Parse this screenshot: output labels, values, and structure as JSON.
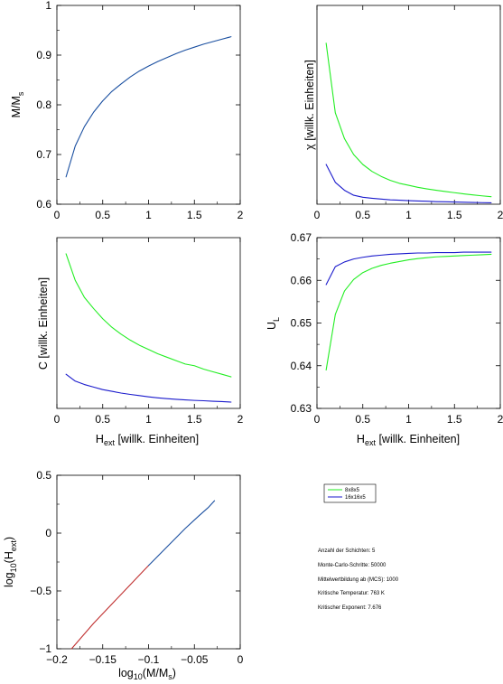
{
  "colors": {
    "green": "#22ee22",
    "blue": "#1a1acc",
    "darkblue": "#1a4fa0",
    "red": "#c03030"
  },
  "legend": {
    "entries": [
      {
        "label": "8x8x5",
        "color": "#22ee22"
      },
      {
        "label": "16x16x5",
        "color": "#1a1acc"
      }
    ]
  },
  "info": {
    "lines": [
      "Anzahl der Schichten: 5",
      "Monte-Carlo-Schritte: 50000",
      "Mittelwertbildung ab (MCS): 1000",
      "Kritische Temperatur: 763 K",
      "Kritischer Exponent: 7.676"
    ]
  },
  "chart_data": [
    {
      "id": "magnetization",
      "type": "line",
      "ylabel_main": "M/M",
      "ylabel_sub": "s",
      "xlim": [
        0,
        2
      ],
      "ylim": [
        0.6,
        1
      ],
      "xticks": [
        0,
        0.5,
        1,
        1.5,
        2
      ],
      "xtick_labels": [
        "0",
        "0.5",
        "1",
        "1.5",
        "2"
      ],
      "yticks": [
        0.6,
        0.7,
        0.8,
        0.9,
        1
      ],
      "ytick_labels": [
        "0.6",
        "0.7",
        "0.8",
        "0.9",
        "1"
      ],
      "series": [
        {
          "color": "#1a4fa0",
          "x": [
            0.1,
            0.2,
            0.3,
            0.4,
            0.5,
            0.6,
            0.7,
            0.8,
            0.9,
            1.0,
            1.1,
            1.2,
            1.3,
            1.4,
            1.5,
            1.6,
            1.7,
            1.8,
            1.9
          ],
          "y": [
            0.655,
            0.717,
            0.756,
            0.785,
            0.808,
            0.827,
            0.842,
            0.856,
            0.868,
            0.878,
            0.887,
            0.895,
            0.903,
            0.91,
            0.916,
            0.922,
            0.927,
            0.932,
            0.937
          ]
        }
      ]
    },
    {
      "id": "susceptibility",
      "type": "line",
      "ylabel_main": "χ [willk. Einheiten]",
      "xlim": [
        0,
        2
      ],
      "ylim": [
        0,
        1
      ],
      "xticks": [
        0,
        0.5,
        1,
        1.5,
        2
      ],
      "xtick_labels": [
        "0",
        "0.5",
        "1",
        "1.5",
        "2"
      ],
      "yticks": [],
      "ytick_labels": [],
      "series": [
        {
          "color": "#22ee22",
          "x": [
            0.1,
            0.2,
            0.3,
            0.4,
            0.5,
            0.6,
            0.7,
            0.8,
            0.9,
            1.0,
            1.1,
            1.2,
            1.3,
            1.4,
            1.5,
            1.6,
            1.7,
            1.8,
            1.9
          ],
          "y": [
            0.81,
            0.46,
            0.33,
            0.25,
            0.2,
            0.165,
            0.14,
            0.12,
            0.105,
            0.095,
            0.085,
            0.077,
            0.07,
            0.064,
            0.058,
            0.052,
            0.047,
            0.042,
            0.038
          ]
        },
        {
          "color": "#1a1acc",
          "x": [
            0.1,
            0.2,
            0.3,
            0.4,
            0.5,
            0.6,
            0.7,
            0.8,
            0.9,
            1.0,
            1.1,
            1.2,
            1.3,
            1.4,
            1.5,
            1.6,
            1.7,
            1.8,
            1.9
          ],
          "y": [
            0.2,
            0.11,
            0.07,
            0.045,
            0.035,
            0.03,
            0.026,
            0.022,
            0.02,
            0.018,
            0.016,
            0.015,
            0.013,
            0.012,
            0.011,
            0.01,
            0.009,
            0.008,
            0.007
          ]
        }
      ]
    },
    {
      "id": "specific-heat",
      "type": "line",
      "ylabel_main": "C [willk. Einheiten]",
      "xlabel_main": "H",
      "xlabel_sub": "ext",
      "xlabel_rest": " [willk. Einheiten]",
      "xlim": [
        0,
        2
      ],
      "ylim": [
        0,
        1
      ],
      "xticks": [
        0,
        0.5,
        1,
        1.5,
        2
      ],
      "xtick_labels": [
        "0",
        "0.5",
        "1",
        "1.5",
        "2"
      ],
      "yticks": [],
      "ytick_labels": [],
      "series": [
        {
          "color": "#22ee22",
          "x": [
            0.1,
            0.2,
            0.3,
            0.4,
            0.5,
            0.6,
            0.7,
            0.8,
            0.9,
            1.0,
            1.1,
            1.2,
            1.3,
            1.4,
            1.5,
            1.6,
            1.7,
            1.8,
            1.9
          ],
          "y": [
            0.905,
            0.75,
            0.65,
            0.585,
            0.525,
            0.475,
            0.435,
            0.4,
            0.37,
            0.345,
            0.32,
            0.3,
            0.28,
            0.26,
            0.25,
            0.23,
            0.215,
            0.2,
            0.185
          ]
        },
        {
          "color": "#1a1acc",
          "x": [
            0.1,
            0.2,
            0.3,
            0.4,
            0.5,
            0.6,
            0.7,
            0.8,
            0.9,
            1.0,
            1.1,
            1.2,
            1.3,
            1.4,
            1.5,
            1.6,
            1.7,
            1.8,
            1.9
          ],
          "y": [
            0.2,
            0.16,
            0.14,
            0.125,
            0.11,
            0.1,
            0.09,
            0.082,
            0.075,
            0.068,
            0.062,
            0.057,
            0.053,
            0.05,
            0.047,
            0.045,
            0.042,
            0.04,
            0.037
          ]
        }
      ]
    },
    {
      "id": "binder",
      "type": "line",
      "ylabel_main": "U",
      "ylabel_sub": "L",
      "xlabel_main": "H",
      "xlabel_sub": "ext",
      "xlabel_rest": " [willk. Einheiten]",
      "xlim": [
        0,
        2
      ],
      "ylim": [
        0.63,
        0.67
      ],
      "xticks": [
        0,
        0.5,
        1,
        1.5,
        2
      ],
      "xtick_labels": [
        "0",
        "0.5",
        "1",
        "1.5",
        "2"
      ],
      "yticks": [
        0.63,
        0.64,
        0.65,
        0.66,
        0.67
      ],
      "ytick_labels": [
        "0.63",
        "0.64",
        "0.65",
        "0.66",
        "0.67"
      ],
      "series": [
        {
          "color": "#22ee22",
          "x": [
            0.1,
            0.2,
            0.3,
            0.4,
            0.5,
            0.6,
            0.7,
            0.8,
            0.9,
            1.0,
            1.1,
            1.2,
            1.3,
            1.4,
            1.5,
            1.6,
            1.7,
            1.8,
            1.9
          ],
          "y": [
            0.639,
            0.652,
            0.6575,
            0.6602,
            0.6618,
            0.6628,
            0.6635,
            0.664,
            0.6644,
            0.6648,
            0.6651,
            0.6653,
            0.6655,
            0.6656,
            0.6657,
            0.6658,
            0.6659,
            0.666,
            0.6661
          ]
        },
        {
          "color": "#1a1acc",
          "x": [
            0.1,
            0.2,
            0.3,
            0.4,
            0.5,
            0.6,
            0.7,
            0.8,
            0.9,
            1.0,
            1.1,
            1.2,
            1.3,
            1.4,
            1.5,
            1.6,
            1.7,
            1.8,
            1.9
          ],
          "y": [
            0.659,
            0.6632,
            0.6643,
            0.665,
            0.6654,
            0.6657,
            0.6659,
            0.6661,
            0.6662,
            0.6663,
            0.6664,
            0.6664,
            0.6665,
            0.6665,
            0.6665,
            0.6666,
            0.6666,
            0.6666,
            0.6666
          ]
        }
      ]
    },
    {
      "id": "loglog",
      "type": "line",
      "ylabel_main": "log",
      "ylabel_sub": "10",
      "ylabel_rest": "(H",
      "ylabel_sub2": "ext",
      "ylabel_end": ")",
      "xlabel_main": "log",
      "xlabel_sub": "10",
      "xlabel_rest": "(M/M",
      "xlabel_sub2": "s",
      "xlabel_end": ")",
      "xlim": [
        -0.2,
        0
      ],
      "ylim": [
        -1,
        0.5
      ],
      "xticks": [
        -0.2,
        -0.15,
        -0.1,
        -0.05,
        0
      ],
      "xtick_labels": [
        "−0.2",
        "−0.15",
        "−0.1",
        "−0.05",
        "0"
      ],
      "yticks": [
        -1,
        -0.5,
        0,
        0.5
      ],
      "ytick_labels": [
        "−1",
        "−0.5",
        "0",
        "0.5"
      ],
      "series": [
        {
          "color": "#c03030",
          "x": [
            -0.184,
            -0.16,
            -0.13,
            -0.1
          ],
          "y": [
            -1.0,
            -0.78,
            -0.53,
            -0.28
          ]
        },
        {
          "color": "#1a4fa0",
          "x": [
            -0.1,
            -0.08,
            -0.06,
            -0.045,
            -0.035,
            -0.028
          ],
          "y": [
            -0.28,
            -0.12,
            0.04,
            0.15,
            0.22,
            0.28
          ]
        }
      ]
    }
  ]
}
